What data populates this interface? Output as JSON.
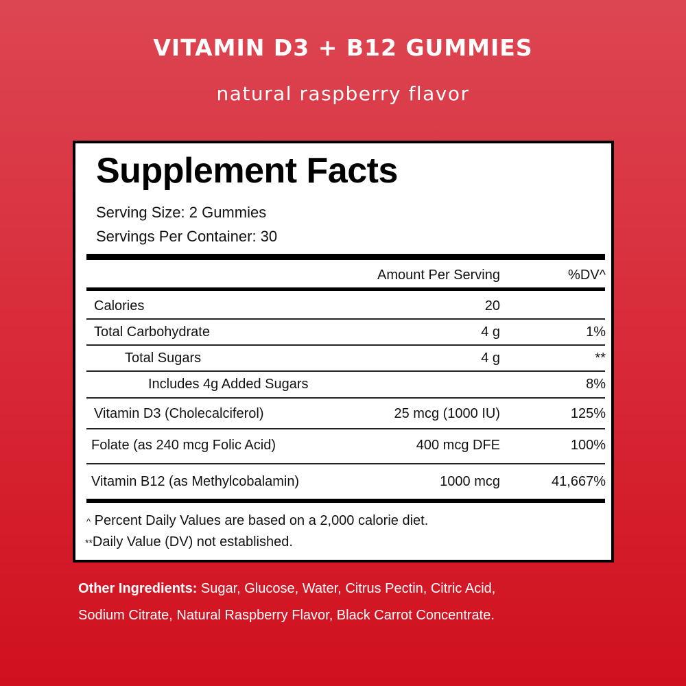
{
  "header": {
    "title": "VITAMIN D3 + B12 GUMMIES",
    "subtitle": "natural raspberry flavor"
  },
  "facts": {
    "title": "Supplement Facts",
    "serving_size": "Serving Size: 2 Gummies",
    "servings_per_container": "Servings Per Container: 30",
    "col_amount": "Amount Per Serving",
    "col_dv": "%DV^",
    "rows": [
      {
        "label": "Calories",
        "amount": "20",
        "dv": ""
      },
      {
        "label": "Total Carbohydrate",
        "amount": "4 g",
        "dv": "1%"
      },
      {
        "label": "Total Sugars",
        "amount": "4 g",
        "dv": "**"
      },
      {
        "label": "Includes 4g Added Sugars",
        "amount": "",
        "dv": "8%"
      },
      {
        "label": "Vitamin D3 (Cholecalciferol)",
        "amount": "25 mcg (1000 IU)",
        "dv": "125%"
      },
      {
        "label": "Folate (as 240 mcg Folic Acid)",
        "amount": "400 mcg DFE",
        "dv": "100%"
      },
      {
        "label": "Vitamin B12 (as Methylcobalamin)",
        "amount": "1000 mcg",
        "dv": "41,667%"
      }
    ],
    "footnote1_mark": "^",
    "footnote1": "Percent Daily Values are based on a 2,000 calorie diet.",
    "footnote2_mark": "**",
    "footnote2": "Daily Value (DV) not established."
  },
  "ingredients": {
    "label": "Other Ingredients:",
    "line1": " Sugar, Glucose, Water, Citrus Pectin, Citric Acid,",
    "line2": "Sodium Citrate, Natural Raspberry Flavor, Black Carrot Concentrate."
  },
  "colors": {
    "background": "#d82a38",
    "panel": "#ffffff",
    "text": "#000000"
  }
}
